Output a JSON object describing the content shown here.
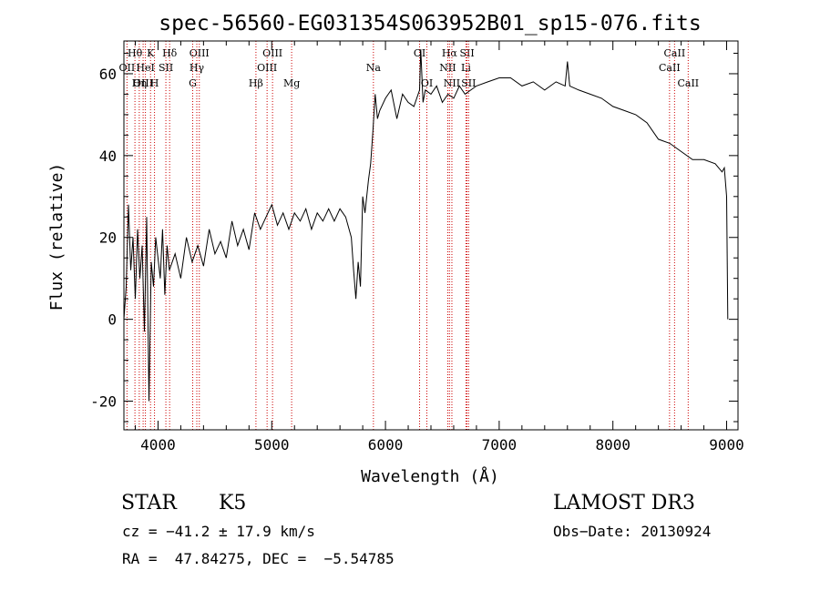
{
  "chart_data": {
    "type": "line",
    "title": "spec-56560-EG031354S063952B01_sp15-076.fits",
    "xlabel": "Wavelength (Å)",
    "ylabel": "Flux (relative)",
    "xlim": [
      3700,
      9100
    ],
    "ylim": [
      -27,
      68
    ],
    "x_ticks": [
      4000,
      5000,
      6000,
      7000,
      8000,
      9000
    ],
    "y_ticks": [
      -20,
      0,
      20,
      40,
      60
    ],
    "series": [
      {
        "name": "flux",
        "x": [
          3700,
          3720,
          3740,
          3760,
          3780,
          3800,
          3820,
          3840,
          3860,
          3880,
          3900,
          3920,
          3940,
          3960,
          3980,
          4000,
          4020,
          4040,
          4060,
          4080,
          4100,
          4150,
          4200,
          4250,
          4300,
          4350,
          4400,
          4450,
          4500,
          4550,
          4600,
          4650,
          4700,
          4750,
          4800,
          4850,
          4900,
          4950,
          5000,
          5050,
          5100,
          5150,
          5200,
          5250,
          5300,
          5350,
          5400,
          5450,
          5500,
          5550,
          5600,
          5650,
          5700,
          5720,
          5740,
          5760,
          5780,
          5800,
          5820,
          5850,
          5870,
          5890,
          5910,
          5930,
          5950,
          6000,
          6050,
          6100,
          6150,
          6200,
          6250,
          6300,
          6310,
          6330,
          6350,
          6400,
          6450,
          6500,
          6550,
          6600,
          6650,
          6700,
          6750,
          6800,
          6900,
          7000,
          7100,
          7200,
          7300,
          7400,
          7500,
          7580,
          7600,
          7620,
          7700,
          7800,
          7900,
          8000,
          8100,
          8200,
          8300,
          8400,
          8500,
          8600,
          8700,
          8800,
          8900,
          8960,
          8980,
          9000,
          9010
        ],
        "values": [
          0,
          8,
          28,
          12,
          20,
          5,
          22,
          10,
          18,
          -3,
          25,
          -20,
          14,
          8,
          20,
          15,
          10,
          22,
          6,
          18,
          12,
          16,
          10,
          20,
          14,
          18,
          13,
          22,
          16,
          19,
          15,
          24,
          18,
          22,
          17,
          26,
          22,
          25,
          28,
          23,
          26,
          22,
          26,
          24,
          27,
          22,
          26,
          24,
          27,
          24,
          27,
          25,
          20,
          12,
          5,
          14,
          8,
          30,
          26,
          34,
          38,
          46,
          55,
          49,
          51,
          54,
          56,
          49,
          55,
          53,
          52,
          56,
          66,
          53,
          56,
          55,
          57,
          53,
          55,
          54,
          57,
          55,
          56,
          57,
          58,
          59,
          59,
          57,
          58,
          56,
          58,
          57,
          63,
          57,
          56,
          55,
          54,
          52,
          51,
          50,
          48,
          44,
          43,
          41,
          39,
          39,
          38,
          36,
          37,
          30,
          0
        ]
      }
    ],
    "line_markers": [
      {
        "label": "Hθ",
        "x": 3797,
        "row": 1
      },
      {
        "label": "OII",
        "x": 3727,
        "row": 2
      },
      {
        "label": "OIII",
        "x": 3869,
        "row": 3
      },
      {
        "label": "K",
        "x": 3934,
        "row": 1
      },
      {
        "label": "HeI",
        "x": 3889,
        "row": 2
      },
      {
        "label": "Hη",
        "x": 3835,
        "row": 3
      },
      {
        "label": "H",
        "x": 3969,
        "row": 3
      },
      {
        "label": "Hδ",
        "x": 4102,
        "row": 1
      },
      {
        "label": "SII",
        "x": 4069,
        "row": 2
      },
      {
        "label": "OIII",
        "x": 4363,
        "row": 1
      },
      {
        "label": "Hγ",
        "x": 4341,
        "row": 2
      },
      {
        "label": "G",
        "x": 4305,
        "row": 3
      },
      {
        "label": "OIII",
        "x": 5007,
        "row": 1
      },
      {
        "label": "OIII",
        "x": 4959,
        "row": 2
      },
      {
        "label": "Hβ",
        "x": 4861,
        "row": 3
      },
      {
        "label": "Mg",
        "x": 5175,
        "row": 3
      },
      {
        "label": "Na",
        "x": 5894,
        "row": 2
      },
      {
        "label": "OI",
        "x": 6300,
        "row": 1
      },
      {
        "label": "OI",
        "x": 6364,
        "row": 3
      },
      {
        "label": "Hα",
        "x": 6563,
        "row": 1
      },
      {
        "label": "SII",
        "x": 6717,
        "row": 1
      },
      {
        "label": "NII",
        "x": 6548,
        "row": 2
      },
      {
        "label": "Li",
        "x": 6708,
        "row": 2
      },
      {
        "label": "NII",
        "x": 6584,
        "row": 3
      },
      {
        "label": "SII",
        "x": 6731,
        "row": 3
      },
      {
        "label": "CaII",
        "x": 8542,
        "row": 1
      },
      {
        "label": "CaII",
        "x": 8498,
        "row": 2
      },
      {
        "label": "CaII",
        "x": 8662,
        "row": 3
      }
    ]
  },
  "info": {
    "class": "STAR",
    "subclass": "K5",
    "survey": "LAMOST DR3",
    "cz": "cz = −41.2 ± 17.9 km/s",
    "obs_date": "Obs−Date: 20130924",
    "coords": "RA =  47.84275, DEC =  −5.54785"
  }
}
